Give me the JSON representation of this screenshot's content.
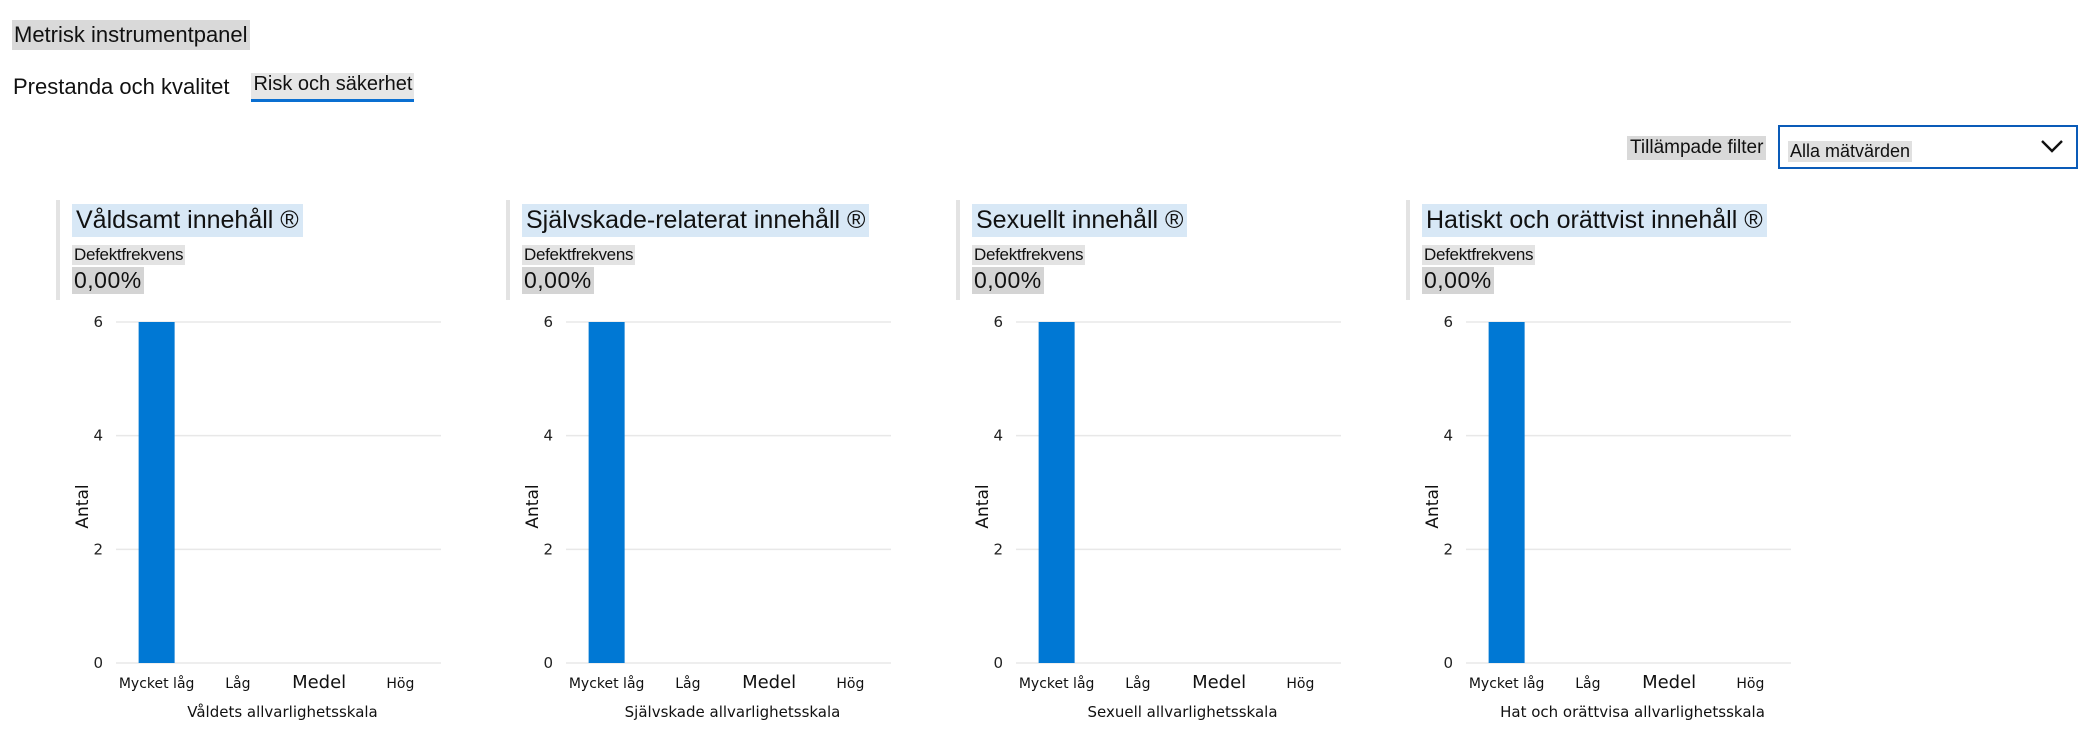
{
  "header": {
    "title": "Metrisk instrumentpanel"
  },
  "tabs": [
    {
      "label": "Prestanda och kvalitet",
      "active": false
    },
    {
      "label": "Risk och säkerhet",
      "active": true
    }
  ],
  "filter": {
    "label": "Tillämpade filter",
    "value": "Alla mätvärden",
    "icon": "chevron-down-icon"
  },
  "colors": {
    "bar": "#0078d4",
    "accent": "#0a6fd1",
    "grid": "#e8e8e8"
  },
  "cards": [
    {
      "title": "Våldsamt innehåll ®",
      "metric_label": "Defektfrekvens",
      "metric_value": "0,00%",
      "chart_data": {
        "type": "bar",
        "categories": [
          "Mycket låg",
          "Låg",
          "Medel",
          "Hög"
        ],
        "values": [
          6,
          0,
          0,
          0
        ],
        "xlabel": "Våldets allvarlighetsskala",
        "ylabel": "Antal",
        "yticks": [
          "0",
          "2",
          "4",
          "6"
        ],
        "ylim": [
          0,
          6
        ],
        "grid": true
      }
    },
    {
      "title": "Självskade-relaterat innehåll ®",
      "metric_label": "Defektfrekvens",
      "metric_value": "0,00%",
      "chart_data": {
        "type": "bar",
        "categories": [
          "Mycket låg",
          "Låg",
          "Medel",
          "Hög"
        ],
        "values": [
          6,
          0,
          0,
          0
        ],
        "xlabel": "Självskade allvarlighetsskala",
        "ylabel": "Antal",
        "yticks": [
          "0",
          "2",
          "4",
          "6"
        ],
        "ylim": [
          0,
          6
        ],
        "grid": true
      }
    },
    {
      "title": "Sexuellt innehåll ®",
      "metric_label": "Defektfrekvens",
      "metric_value": "0,00%",
      "chart_data": {
        "type": "bar",
        "categories": [
          "Mycket låg",
          "Låg",
          "Medel",
          "Hög"
        ],
        "values": [
          6,
          0,
          0,
          0
        ],
        "xlabel": "Sexuell allvarlighetsskala",
        "ylabel": "Antal",
        "yticks": [
          "0",
          "2",
          "4",
          "6"
        ],
        "ylim": [
          0,
          6
        ],
        "grid": true
      }
    },
    {
      "title": "Hatiskt och orättvist innehåll ®",
      "metric_label": "Defektfrekvens",
      "metric_value": "0,00%",
      "chart_data": {
        "type": "bar",
        "categories": [
          "Mycket låg",
          "Låg",
          "Medel",
          "Hög"
        ],
        "values": [
          6,
          0,
          0,
          0
        ],
        "xlabel": "Hat och orättvisa allvarlighetsskala",
        "ylabel": "Antal",
        "yticks": [
          "0",
          "2",
          "4",
          "6"
        ],
        "ylim": [
          0,
          6
        ],
        "grid": true
      }
    }
  ]
}
